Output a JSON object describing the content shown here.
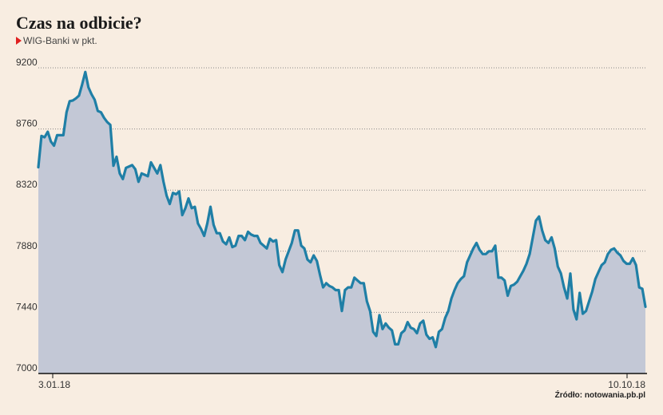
{
  "title": "Czas na odbicie?",
  "subtitle": "WIG-Banki w pkt.",
  "source": "Źródło: notowania.pb.pl",
  "colors": {
    "background": "#f8ede1",
    "line": "#1f7fa6",
    "area": "#c3c8d6",
    "marker": "#e02020"
  },
  "chart_data": {
    "type": "area",
    "title": "Czas na odbicie?",
    "subtitle": "WIG-Banki w pkt.",
    "xlabel": "",
    "ylabel": "",
    "ylim": [
      7000,
      9200
    ],
    "yticks": [
      9200,
      8760,
      8320,
      7880,
      7440,
      7000
    ],
    "x_start_label": "3.01.18",
    "x_end_label": "10.10.18",
    "grid": "horizontal dotted",
    "legend": "none",
    "series": [
      {
        "values": [
          8485,
          8710,
          8700,
          8740,
          8670,
          8640,
          8715,
          8715,
          8715,
          8880,
          8960,
          8965,
          8980,
          9000,
          9080,
          9170,
          9060,
          9010,
          8970,
          8890,
          8880,
          8840,
          8810,
          8790,
          8495,
          8560,
          8440,
          8400,
          8480,
          8490,
          8500,
          8470,
          8380,
          8440,
          8430,
          8420,
          8520,
          8480,
          8440,
          8500,
          8380,
          8280,
          8220,
          8300,
          8290,
          8310,
          8140,
          8190,
          8260,
          8190,
          8200,
          8080,
          8040,
          7990,
          8080,
          8200,
          8070,
          8010,
          8010,
          7950,
          7930,
          7980,
          7910,
          7920,
          7990,
          7990,
          7960,
          8020,
          8000,
          7990,
          7990,
          7940,
          7920,
          7900,
          7970,
          7950,
          7960,
          7780,
          7730,
          7820,
          7880,
          7940,
          8030,
          8030,
          7920,
          7900,
          7820,
          7800,
          7850,
          7810,
          7710,
          7620,
          7650,
          7630,
          7620,
          7600,
          7600,
          7450,
          7600,
          7620,
          7620,
          7690,
          7670,
          7650,
          7650,
          7520,
          7450,
          7300,
          7270,
          7420,
          7320,
          7360,
          7330,
          7310,
          7210,
          7210,
          7290,
          7310,
          7370,
          7330,
          7320,
          7290,
          7360,
          7380,
          7280,
          7250,
          7260,
          7190,
          7300,
          7320,
          7400,
          7450,
          7540,
          7600,
          7650,
          7680,
          7700,
          7800,
          7850,
          7900,
          7940,
          7890,
          7860,
          7860,
          7880,
          7880,
          7920,
          7690,
          7690,
          7670,
          7560,
          7630,
          7640,
          7660,
          7700,
          7740,
          7790,
          7860,
          7980,
          8100,
          8130,
          8030,
          7960,
          7940,
          7980,
          7900,
          7770,
          7720,
          7620,
          7540,
          7720,
          7460,
          7390,
          7580,
          7430,
          7450,
          7520,
          7590,
          7680,
          7730,
          7780,
          7800,
          7860,
          7890,
          7900,
          7870,
          7850,
          7810,
          7790,
          7790,
          7830,
          7780,
          7620,
          7610,
          7480
        ]
      }
    ]
  }
}
